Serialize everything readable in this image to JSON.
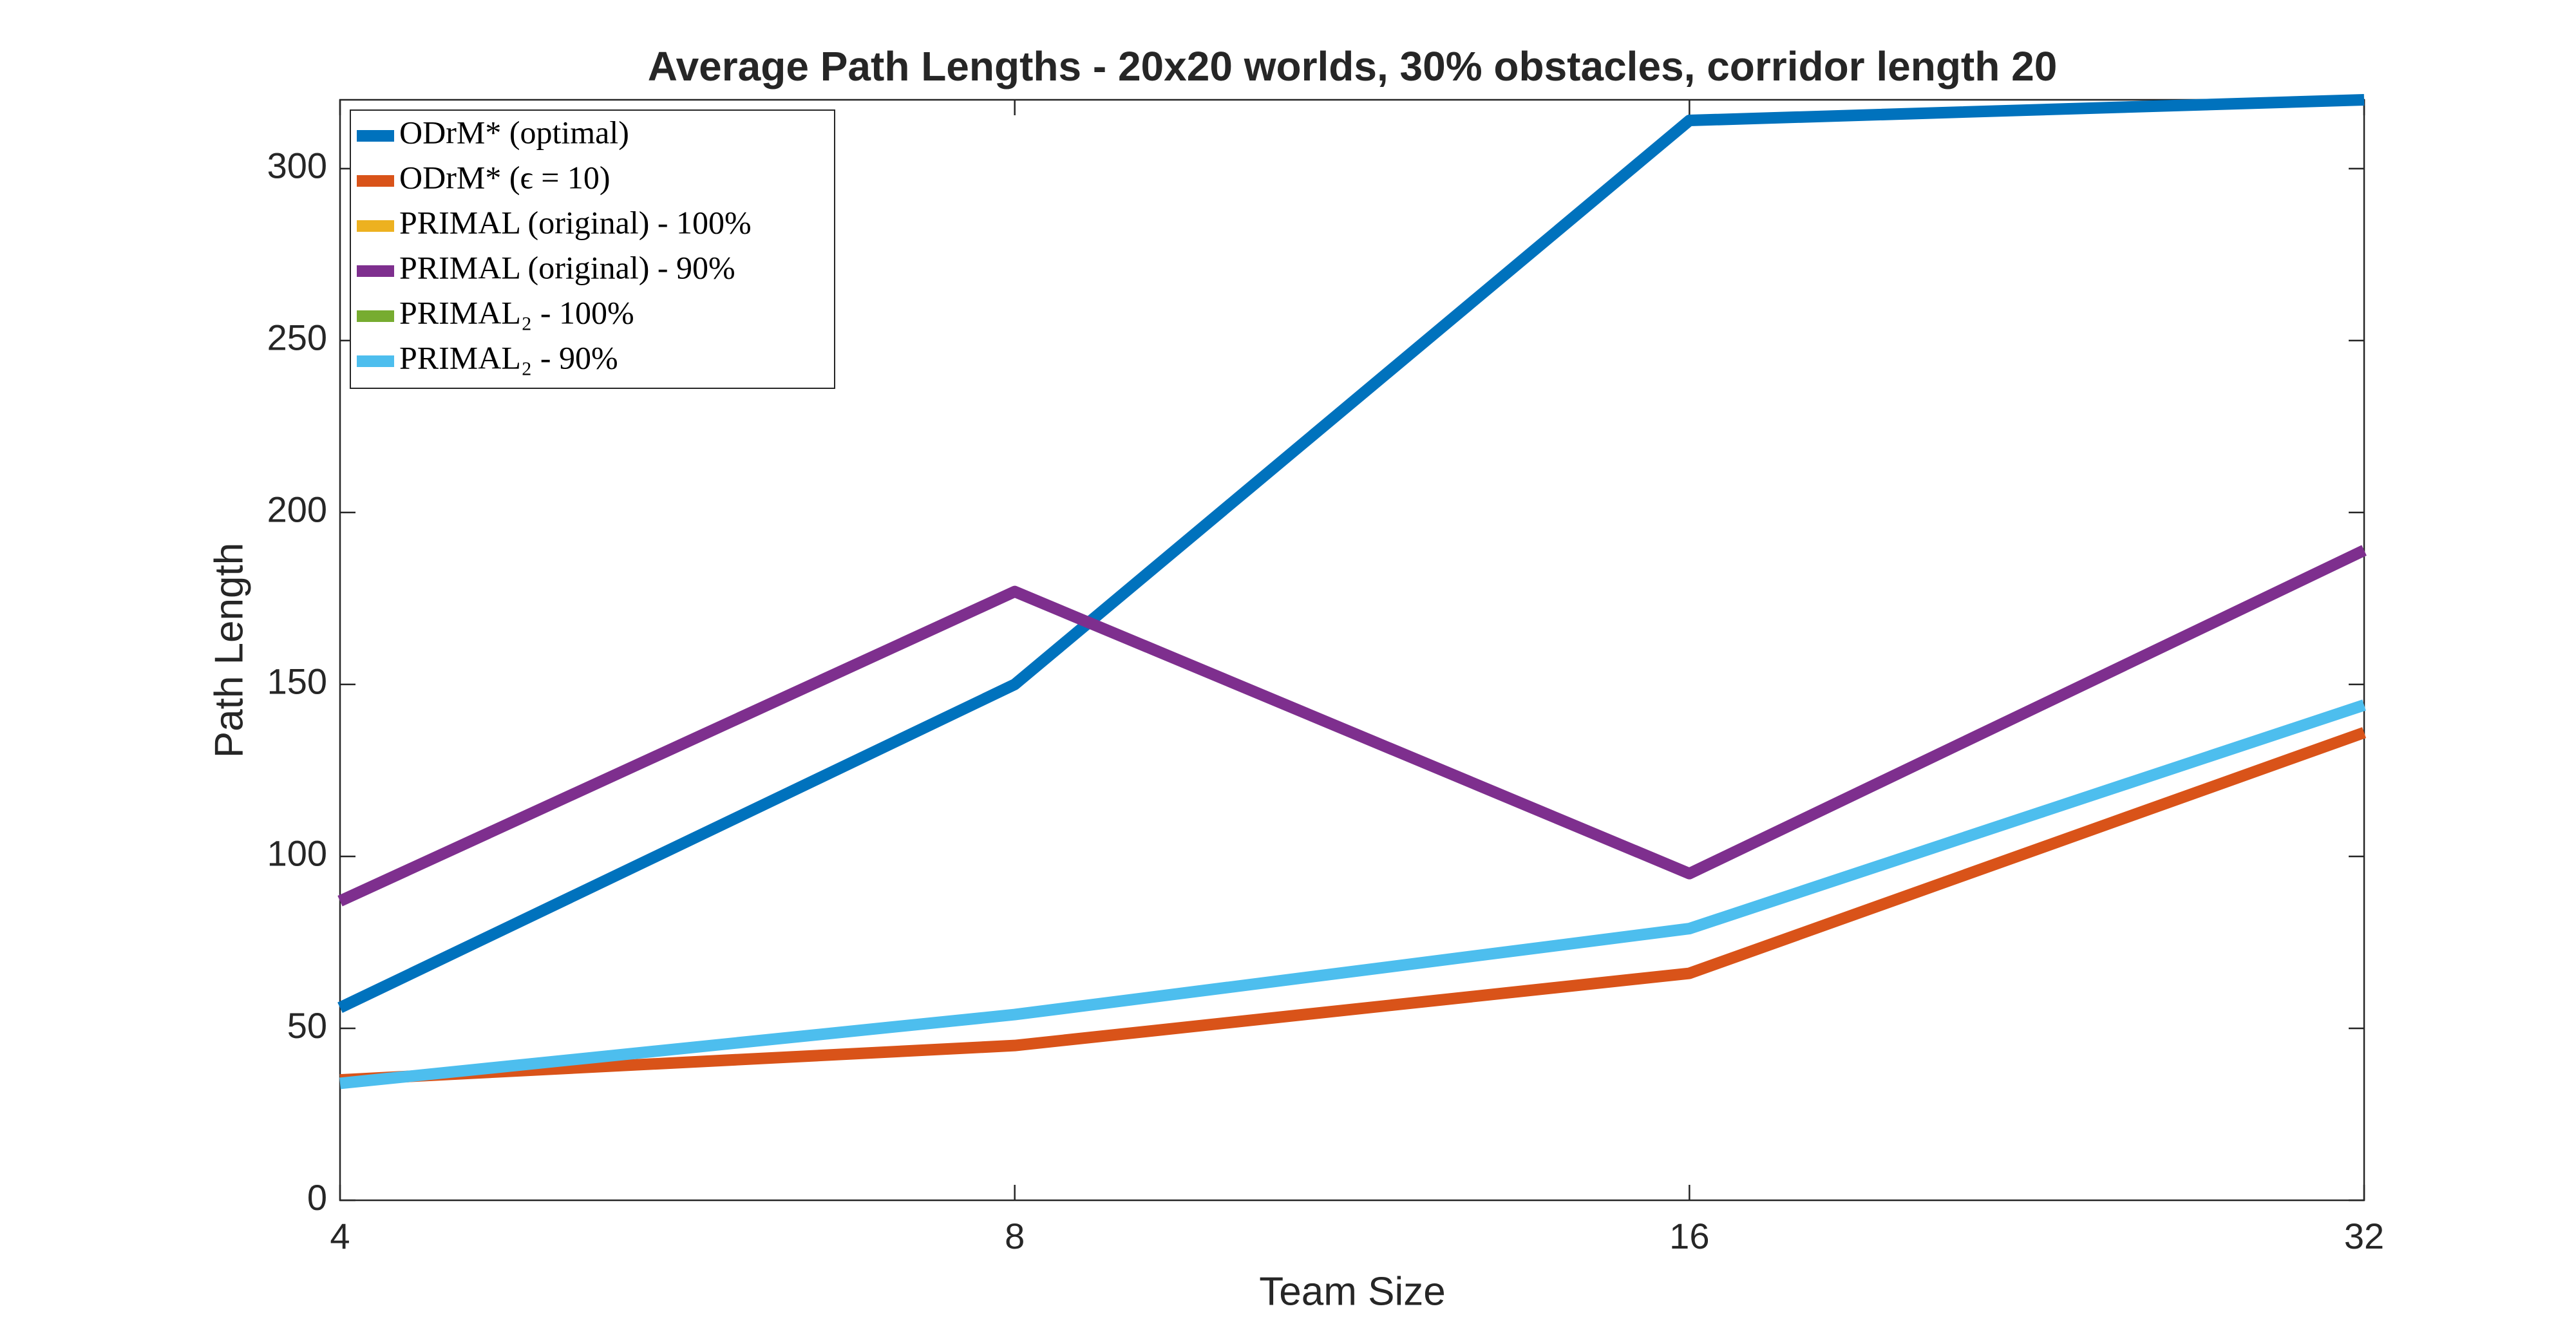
{
  "chart_data": {
    "type": "line",
    "title": "Average Path Lengths - 20x20 worlds, 30% obstacles, corridor length 20",
    "x_label": "Team Size",
    "y_label": "Path Length",
    "x": [
      4,
      8,
      16,
      32
    ],
    "xlim": [
      4,
      32
    ],
    "xticks": [
      4,
      8,
      16,
      32
    ],
    "x_log": true,
    "ylim": [
      0,
      320
    ],
    "yticks": [
      0,
      50,
      100,
      150,
      200,
      250,
      300
    ],
    "grid": false,
    "legend": "northwest",
    "series": [
      {
        "name": "ODrM* (optimal)",
        "color": "#0072BD",
        "values": [
          56,
          150,
          314,
          320
        ]
      },
      {
        "name": "ODrM* (ϵ = 10)",
        "color": "#D95319",
        "values": [
          35,
          45,
          66,
          136
        ]
      },
      {
        "name": "PRIMAL (original) - 100%",
        "color": "#EDB120",
        "values": [
          null,
          null,
          null,
          null
        ]
      },
      {
        "name": "PRIMAL (original) - 90%",
        "color": "#7E2F8E",
        "values": [
          87,
          177,
          95,
          189
        ]
      },
      {
        "name": "PRIMAL₂ - 100%",
        "color": "#77AC30",
        "values": [
          null,
          null,
          null,
          null
        ]
      },
      {
        "name": "PRIMAL₂ - 90%",
        "color": "#4DBEEE",
        "values": [
          34,
          54,
          79,
          144
        ]
      }
    ]
  }
}
